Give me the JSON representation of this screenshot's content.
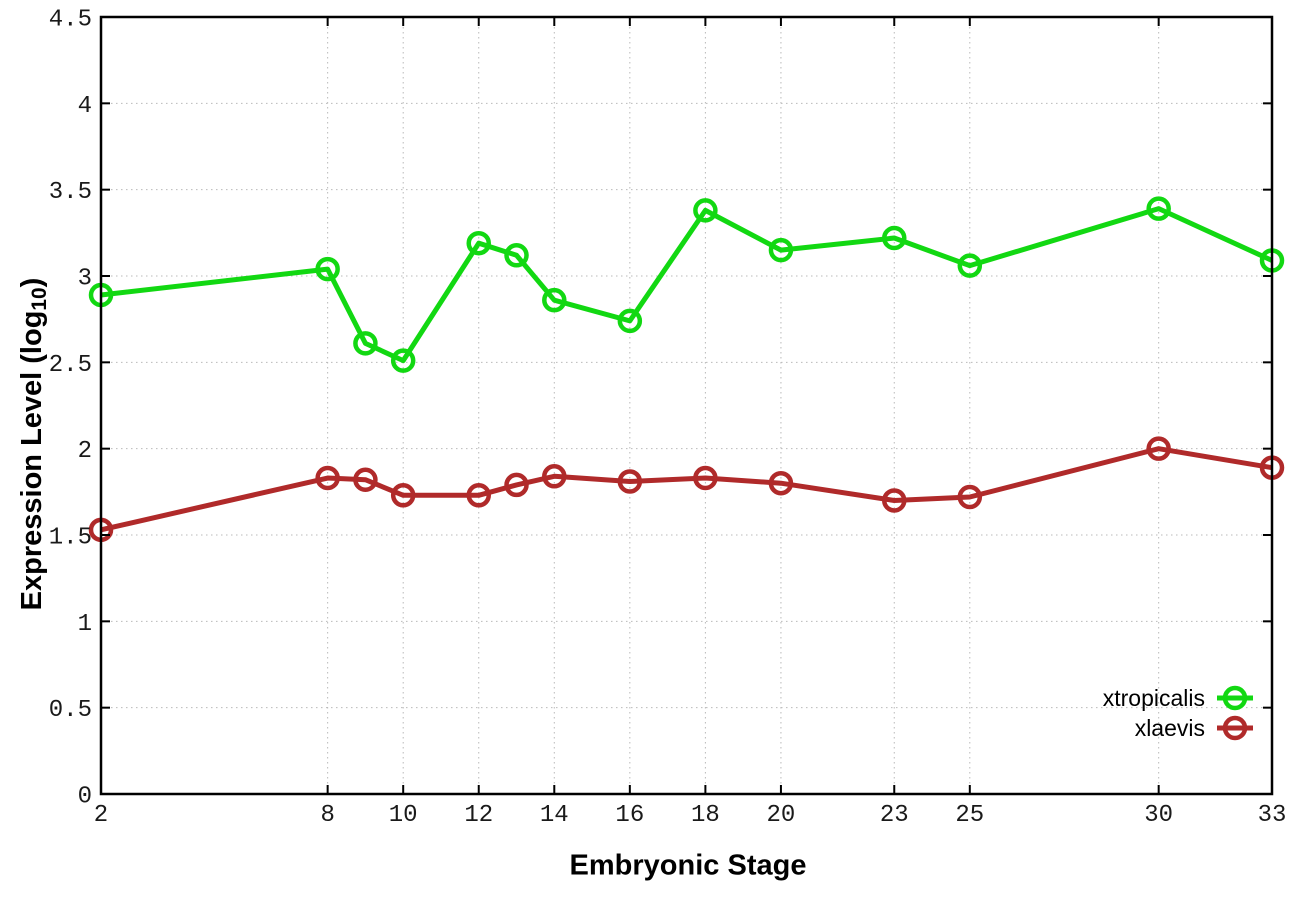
{
  "chart_data": {
    "type": "line",
    "xlabel": "Embryonic Stage",
    "ylabel": "Expression Level (log10)",
    "ylabel_parts": {
      "pre": "Expression Level (log",
      "sub": "10",
      "post": ")"
    },
    "x": [
      2,
      8,
      9,
      10,
      12,
      13,
      14,
      16,
      18,
      20,
      23,
      25,
      30,
      33
    ],
    "series": [
      {
        "name": "xtropicalis",
        "color": "#12d812",
        "values": [
          2.89,
          3.04,
          2.61,
          2.51,
          3.19,
          3.12,
          2.86,
          2.74,
          3.38,
          3.15,
          3.22,
          3.06,
          3.39,
          3.09
        ]
      },
      {
        "name": "xlaevis",
        "color": "#b02a2a",
        "values": [
          1.53,
          1.83,
          1.82,
          1.73,
          1.73,
          1.79,
          1.84,
          1.81,
          1.83,
          1.8,
          1.7,
          1.72,
          2.0,
          1.89
        ]
      }
    ],
    "xticks": [
      2,
      8,
      10,
      12,
      14,
      16,
      18,
      20,
      23,
      25,
      30,
      33
    ],
    "xtick_labels": [
      "2",
      "8",
      "10",
      "12",
      "14",
      "16",
      "18",
      "20",
      "23",
      "25",
      "30",
      "33"
    ],
    "yticks": [
      0,
      0.5,
      1,
      1.5,
      2,
      2.5,
      3,
      3.5,
      4,
      4.5
    ],
    "ytick_labels": [
      "0",
      "0.5",
      "1",
      "1.5",
      "2",
      "2.5",
      "3",
      "3.5",
      "4",
      "4.5"
    ],
    "xlim": [
      2,
      33
    ],
    "ylim": [
      0,
      4.5
    ],
    "grid": true,
    "legend_position": "bottom-right",
    "legend_labels": [
      "xtropicalis",
      "xlaevis"
    ]
  },
  "colors": {
    "background": "#ffffff",
    "border": "#000000",
    "grid": "#b9b9b9",
    "tick_text": "#1a1a1a",
    "series_green": "#12d812",
    "series_red": "#b02a2a"
  }
}
